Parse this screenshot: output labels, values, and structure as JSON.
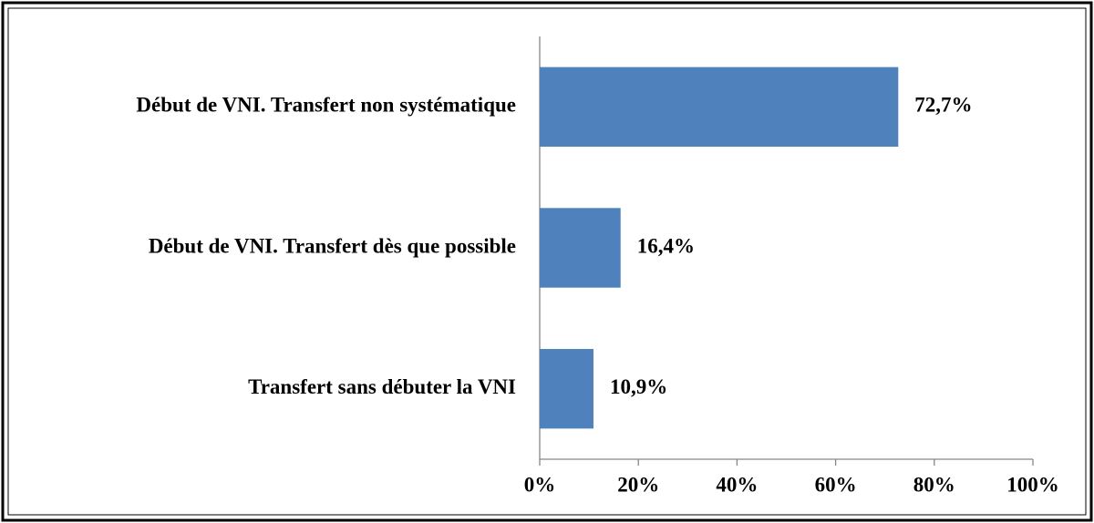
{
  "chart_data": {
    "type": "barh",
    "categories": [
      "Début de VNI. Transfert non systématique",
      "Début de VNI. Transfert dès que possible",
      "Transfert sans débuter la VNI"
    ],
    "values": [
      72.7,
      16.4,
      10.9
    ],
    "value_labels": [
      "72,7%",
      "16,4%",
      "10,9%"
    ],
    "color": "#4f81bd",
    "xlim": [
      0,
      100
    ],
    "xticks": [
      {
        "value": 0,
        "label": "0%"
      },
      {
        "value": 20,
        "label": "20%"
      },
      {
        "value": 40,
        "label": "40%"
      },
      {
        "value": 60,
        "label": "60%"
      },
      {
        "value": 80,
        "label": "80%"
      },
      {
        "value": 100,
        "label": "100%"
      }
    ],
    "grid": false
  }
}
